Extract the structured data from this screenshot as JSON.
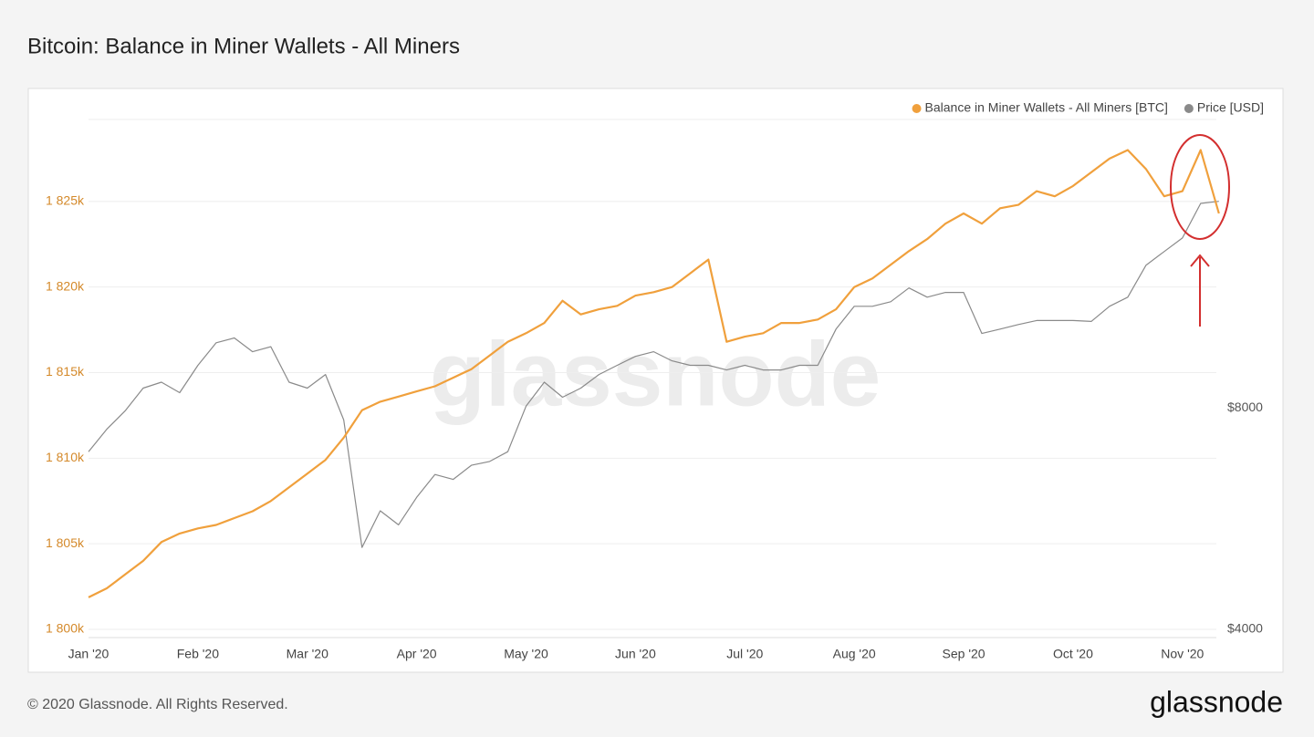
{
  "chart_data": {
    "type": "line",
    "title": "Bitcoin: Balance in Miner Wallets - All Miners",
    "watermark": "glassnode",
    "categories": [
      "Jan '20",
      null,
      null,
      null,
      null,
      null,
      "Feb '20",
      null,
      null,
      null,
      null,
      null,
      "Mar '20",
      null,
      null,
      null,
      null,
      null,
      "Apr '20",
      null,
      null,
      null,
      null,
      null,
      "May '20",
      null,
      null,
      null,
      null,
      null,
      "Jun '20",
      null,
      null,
      null,
      null,
      null,
      "Jul '20",
      null,
      null,
      null,
      null,
      null,
      "Aug '20",
      null,
      null,
      null,
      null,
      null,
      "Sep '20",
      null,
      null,
      null,
      null,
      null,
      "Oct '20",
      null,
      null,
      null,
      null,
      null,
      "Nov '20",
      null,
      null
    ],
    "series": [
      {
        "name": "Balance in Miner Wallets - All Miners [BTC]",
        "color": "#f0a03c",
        "axis": "y",
        "values": [
          1801870,
          1802400,
          1803200,
          1804000,
          1805100,
          1805600,
          1805900,
          1806100,
          1806500,
          1806900,
          1807500,
          1808300,
          1809100,
          1809900,
          1811200,
          1812800,
          1813300,
          1813600,
          1813900,
          1814200,
          1814700,
          1815200,
          1816000,
          1816800,
          1817300,
          1817900,
          1819200,
          1818400,
          1818700,
          1818900,
          1819500,
          1819700,
          1820000,
          1820800,
          1821600,
          1816800,
          1817100,
          1817300,
          1817900,
          1817900,
          1818100,
          1818700,
          1820000,
          1820500,
          1821300,
          1822100,
          1822800,
          1823700,
          1824300,
          1823700,
          1824600,
          1824800,
          1825600,
          1825300,
          1825900,
          1826700,
          1827500,
          1828000,
          1826900,
          1825300,
          1825600,
          1828000,
          1824300
        ]
      },
      {
        "name": "Price [USD]",
        "color": "#8a8a8a",
        "axis": "y2",
        "values": [
          6980,
          7490,
          7930,
          8520,
          8680,
          8400,
          9150,
          9820,
          9970,
          9550,
          9700,
          8680,
          8520,
          8890,
          7710,
          5170,
          5800,
          5550,
          6050,
          6500,
          6400,
          6690,
          6770,
          6980,
          8050,
          8680,
          8280,
          8520,
          8890,
          9150,
          9410,
          9550,
          9280,
          9150,
          9150,
          9020,
          9150,
          9020,
          9020,
          9150,
          9150,
          10250,
          11010,
          11010,
          11170,
          11660,
          11330,
          11500,
          11500,
          10110,
          10250,
          10400,
          10530,
          10530,
          10530,
          10500,
          11010,
          11330,
          12520,
          13070,
          13640,
          15200,
          15300
        ]
      }
    ],
    "ylim": [
      1800000,
      1830000
    ],
    "yticks": [
      {
        "value": 1800000,
        "label": "1 800k"
      },
      {
        "value": 1805000,
        "label": "1 805k"
      },
      {
        "value": 1810000,
        "label": "1 810k"
      },
      {
        "value": 1815000,
        "label": "1 815k"
      },
      {
        "value": 1820000,
        "label": "1 820k"
      },
      {
        "value": 1825000,
        "label": "1 825k"
      }
    ],
    "y2lim": [
      4000,
      20000
    ],
    "y2ticks": [
      {
        "value": 4000,
        "label": "$4000"
      },
      {
        "value": 8000,
        "label": "$8000"
      }
    ],
    "y2scale": "log",
    "grid": true,
    "legend": "top-right"
  },
  "footer": {
    "copyright": "© 2020 Glassnode. All Rights Reserved.",
    "logo": "glassnode"
  }
}
